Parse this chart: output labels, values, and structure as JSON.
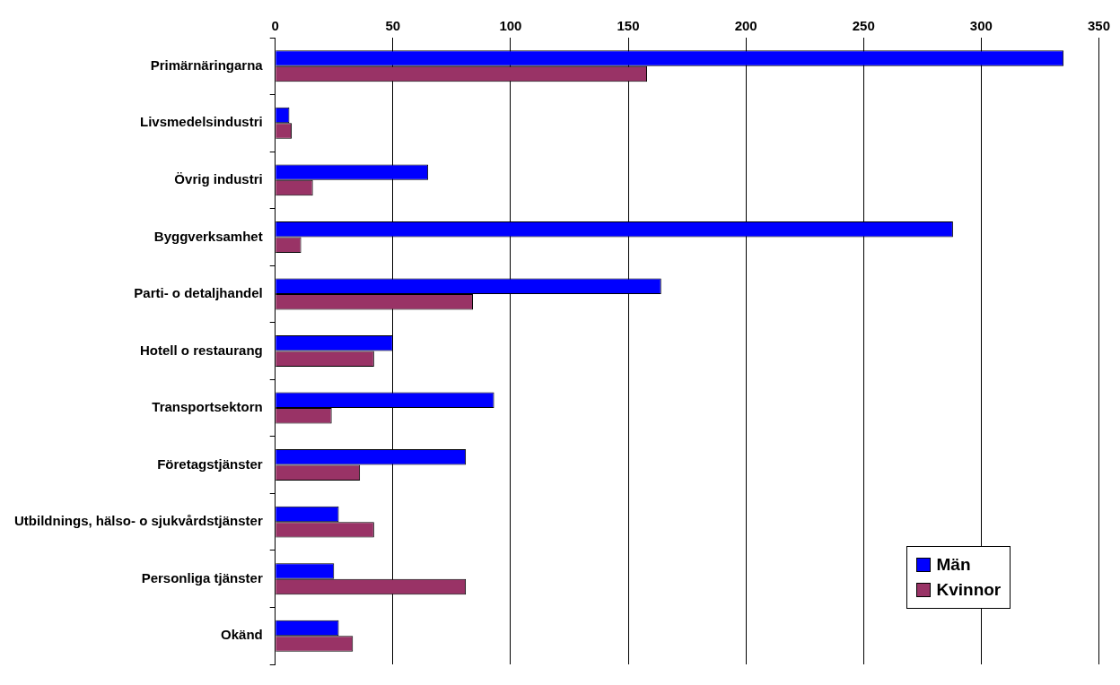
{
  "chart_data": {
    "type": "bar",
    "orientation": "horizontal",
    "categories": [
      "Primärnäringarna",
      "Livsmedelsindustri",
      "Övrig industri",
      "Byggverksamhet",
      "Parti- o detaljhandel",
      "Hotell o restaurang",
      "Transportsektorn",
      "Företagstjänster",
      "Utbildnings, hälso- o sjukvårdstjänster",
      "Personliga tjänster",
      "Okänd"
    ],
    "series": [
      {
        "name": "Män",
        "color": "#0000ff",
        "values": [
          335,
          6,
          65,
          288,
          164,
          50,
          93,
          81,
          27,
          25,
          27
        ]
      },
      {
        "name": "Kvinnor",
        "color": "#993366",
        "values": [
          158,
          7,
          16,
          11,
          84,
          42,
          24,
          36,
          42,
          81,
          33
        ]
      }
    ],
    "xlim": [
      0,
      350
    ],
    "xticks": [
      0,
      50,
      100,
      150,
      200,
      250,
      300,
      350
    ],
    "grid": "x",
    "legend": "bottom right"
  }
}
